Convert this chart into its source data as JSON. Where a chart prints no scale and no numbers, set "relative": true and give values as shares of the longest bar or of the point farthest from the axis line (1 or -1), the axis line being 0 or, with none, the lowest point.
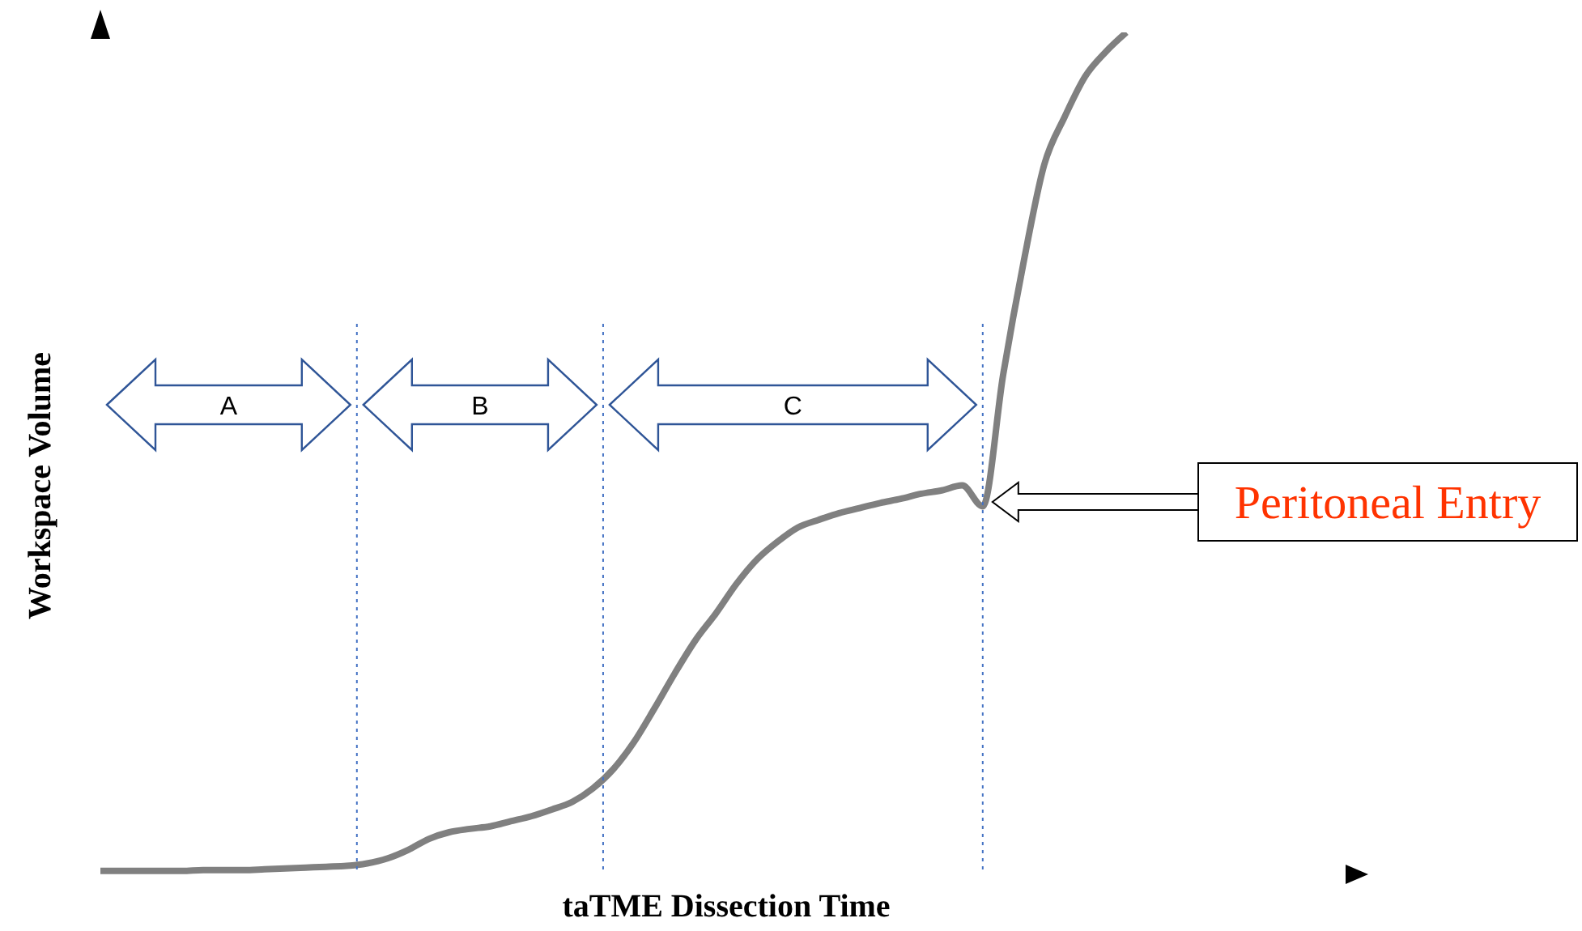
{
  "chart_data": {
    "type": "line",
    "relative": true,
    "xlabel": "taTME Dissection Time",
    "ylabel": "Workspace Volume",
    "categories": [
      null,
      null,
      null,
      null,
      null,
      null,
      null,
      null,
      null,
      null,
      null,
      null,
      null,
      null,
      null,
      null,
      null,
      null,
      null,
      null,
      null,
      null,
      null,
      null,
      null,
      null,
      null,
      null,
      null,
      null,
      null,
      null,
      null,
      null,
      null,
      null,
      null,
      null,
      null,
      null,
      null,
      null,
      null,
      null,
      null,
      null,
      null,
      null,
      null,
      null,
      null,
      null,
      null,
      null,
      null,
      null,
      null,
      null,
      null,
      null,
      null,
      null
    ],
    "series": [
      {
        "color": "#808080",
        "values": [
          0.004,
          0.004,
          0.004,
          0.004,
          0.004,
          0.005,
          0.005,
          0.005,
          0.006,
          0.007,
          0.008,
          0.009,
          0.01,
          0.013,
          0.019,
          0.029,
          0.042,
          0.05,
          0.054,
          0.057,
          0.063,
          0.069,
          0.077,
          0.086,
          0.102,
          0.125,
          0.157,
          0.197,
          0.239,
          0.278,
          0.31,
          0.345,
          0.374,
          0.395,
          0.412,
          0.421,
          0.429,
          0.435,
          0.441,
          0.446,
          0.452,
          0.456,
          0.462,
          0.437,
          0.594,
          0.728,
          0.843,
          0.9,
          0.948,
          0.977,
          1.0,
          null,
          null,
          null,
          null,
          null,
          null,
          null,
          null,
          null,
          null,
          null
        ]
      }
    ],
    "annotations": [
      "A",
      "B",
      "C",
      "Peritoneal Entry"
    ]
  }
}
